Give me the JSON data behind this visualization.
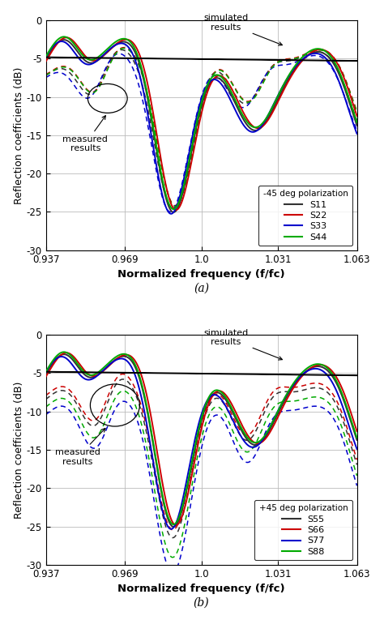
{
  "xlim": [
    0.937,
    1.063
  ],
  "ylim": [
    -30,
    0
  ],
  "xticks": [
    0.937,
    0.969,
    1.0,
    1.031,
    1.063
  ],
  "yticks": [
    0,
    -5,
    -10,
    -15,
    -20,
    -25,
    -30
  ],
  "xlabel": "Normalized frequency (f/fc)",
  "ylabel": "Reflection coefficients (dB)",
  "label_a": "(a)",
  "label_b": "(b)",
  "legend_a_title": "-45 deg polarization",
  "legend_b_title": "+45 deg polarization",
  "legend_a": [
    "S11",
    "S22",
    "S33",
    "S44"
  ],
  "legend_b": [
    "S55",
    "S66",
    "S77",
    "S88"
  ],
  "colors": [
    "#333333",
    "#cc0000",
    "#0000cc",
    "#00aa00"
  ],
  "annotation_sim": "simulated\nresults",
  "annotation_meas": "measured\nresults",
  "figsize": [
    4.74,
    7.65
  ],
  "dpi": 100
}
